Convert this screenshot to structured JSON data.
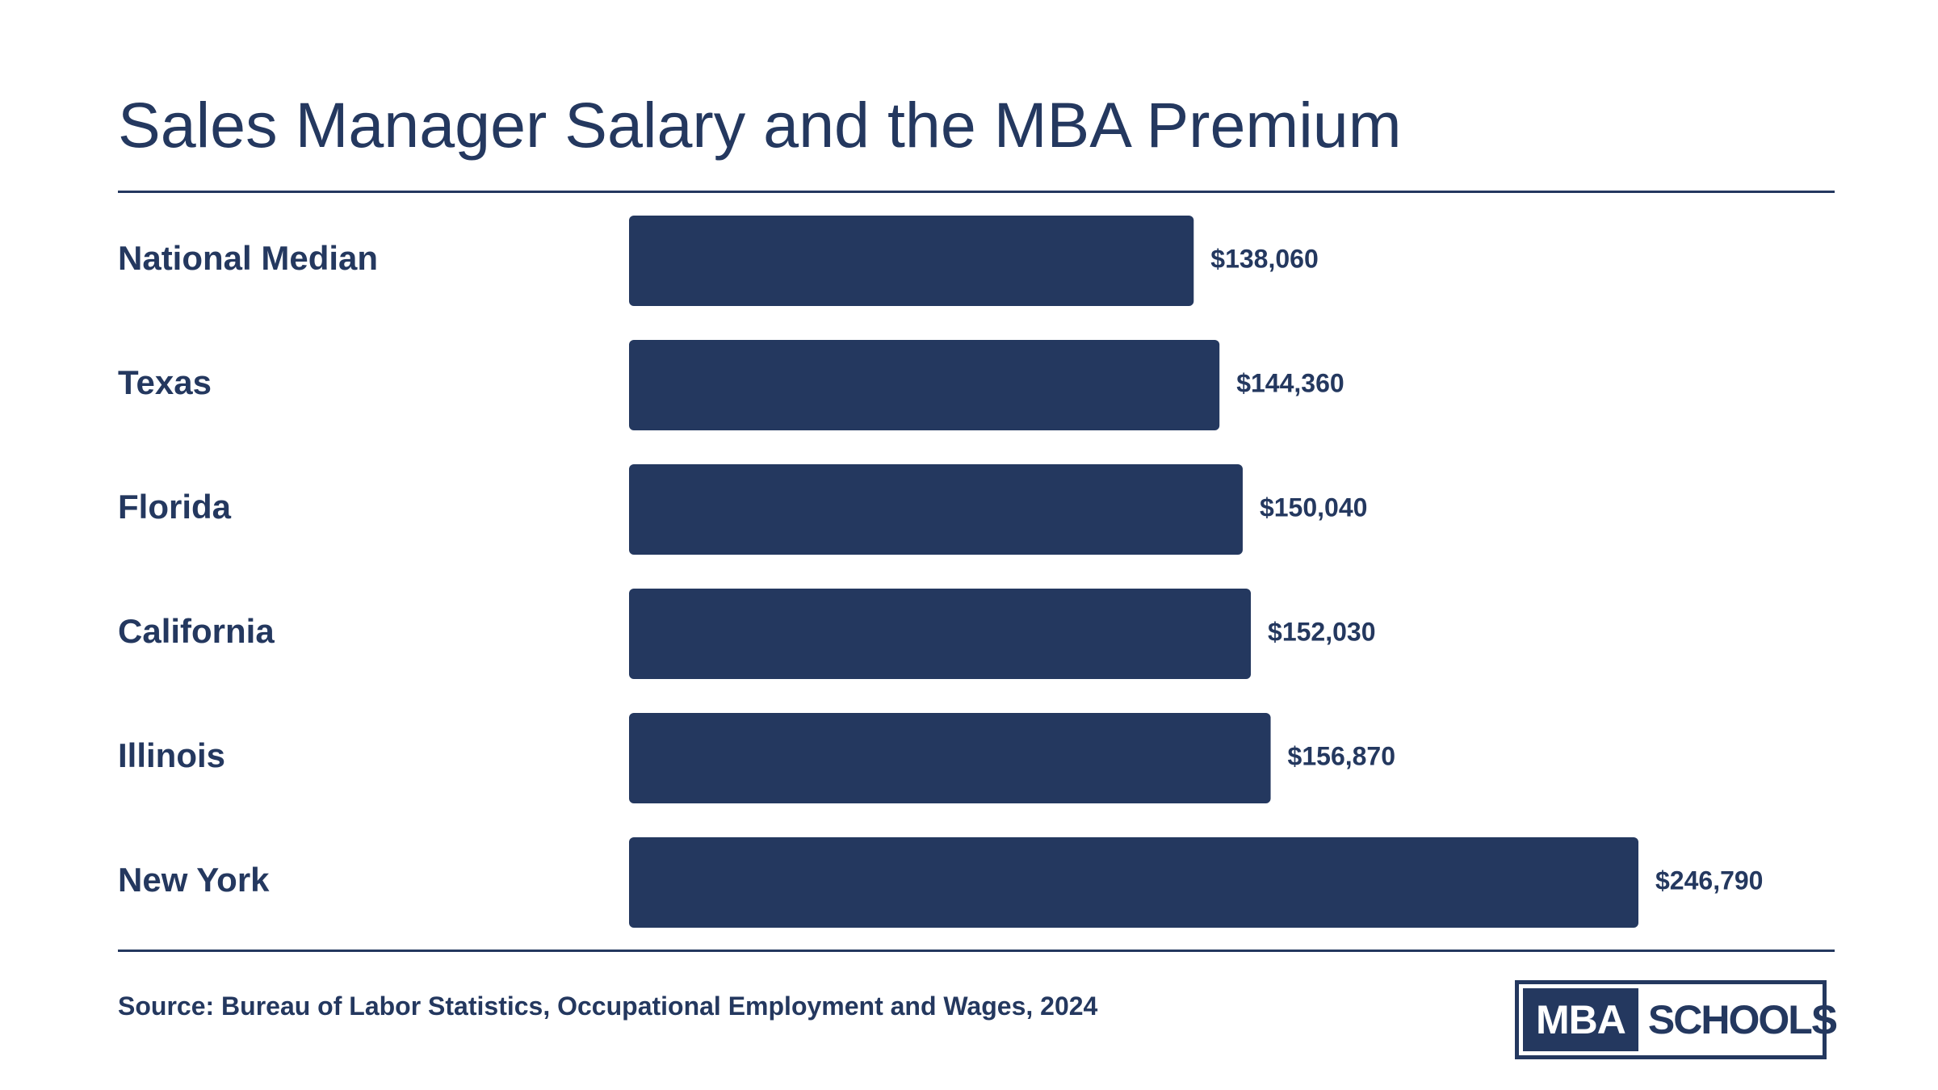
{
  "title": "Sales Manager Salary and the MBA Premium",
  "source": "Source: Bureau of Labor Statistics, Occupational Employment and Wages, 2024",
  "logo": {
    "part1": "MBA",
    "part2": "SCHOOLS"
  },
  "colors": {
    "bar": "#24385f",
    "text": "#24385f",
    "background": "#ffffff"
  },
  "chart_data": {
    "type": "bar",
    "orientation": "horizontal",
    "categories": [
      "National Median",
      "Texas",
      "Florida",
      "California",
      "Illinois",
      "New York"
    ],
    "values": [
      138060,
      144360,
      150040,
      152030,
      156870,
      246790
    ],
    "value_labels": [
      "$138,060",
      "$144,360",
      "$150,040",
      "$152,030",
      "$156,870",
      "$246,790"
    ],
    "title": "Sales Manager Salary and the MBA Premium",
    "xlabel": "",
    "ylabel": "",
    "xlim": [
      0,
      246790
    ],
    "grid": false,
    "legend": "none"
  }
}
